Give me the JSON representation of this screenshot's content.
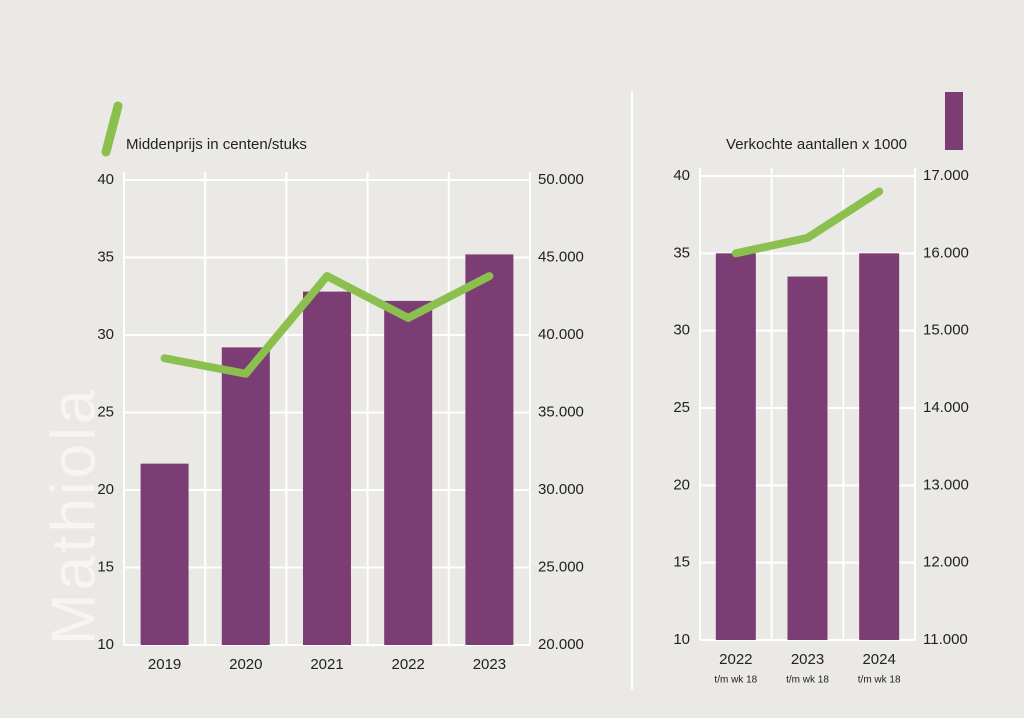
{
  "watermark": "Mathiola",
  "chart_data": [
    {
      "type": "bar-line",
      "categories": [
        "2019",
        "2020",
        "2021",
        "2022",
        "2023"
      ],
      "series": [
        {
          "name": "Middenprijs in centen/stuks",
          "type": "line",
          "axis": "y",
          "color": "#8bc04f",
          "values": [
            28.5,
            27.5,
            33.8,
            31.1,
            33.8
          ]
        },
        {
          "type": "bar",
          "axis": "y2",
          "color": "#7b3d74",
          "values": [
            31700,
            39200,
            42800,
            42200,
            45200
          ]
        }
      ],
      "ylim": [
        10,
        40
      ],
      "yticks": [
        10,
        15,
        20,
        25,
        30,
        35,
        40
      ],
      "y2lim": [
        20000,
        50000
      ],
      "y2ticks": [
        {
          "value": 20000,
          "label": "20.000"
        },
        {
          "value": 25000,
          "label": "25.000"
        },
        {
          "value": 30000,
          "label": "30.000"
        },
        {
          "value": 35000,
          "label": "35.000"
        },
        {
          "value": 40000,
          "label": "40.000"
        },
        {
          "value": 45000,
          "label": "45.000"
        },
        {
          "value": 50000,
          "label": "50.000"
        }
      ],
      "grid": true
    },
    {
      "type": "bar-line",
      "categories": [
        "2022",
        "2023",
        "2024"
      ],
      "category_notes": [
        "t/m wk 18",
        "t/m wk 18",
        "t/m wk 18"
      ],
      "series": [
        {
          "type": "line",
          "axis": "y",
          "color": "#8bc04f",
          "values": [
            35,
            36,
            39
          ]
        },
        {
          "name": "Verkochte aantallen x 1000",
          "type": "bar",
          "axis": "y2",
          "color": "#7b3d74",
          "values": [
            16000,
            15700,
            16000
          ]
        }
      ],
      "ylim": [
        10,
        40
      ],
      "yticks": [
        10,
        15,
        20,
        25,
        30,
        35,
        40
      ],
      "y2lim": [
        11000,
        17000
      ],
      "y2ticks": [
        {
          "value": 11000,
          "label": "11.000"
        },
        {
          "value": 12000,
          "label": "12.000"
        },
        {
          "value": 13000,
          "label": "13.000"
        },
        {
          "value": 14000,
          "label": "14.000"
        },
        {
          "value": 15000,
          "label": "15.000"
        },
        {
          "value": 16000,
          "label": "16.000"
        },
        {
          "value": 17000,
          "label": "17.000"
        }
      ],
      "grid": true
    }
  ]
}
